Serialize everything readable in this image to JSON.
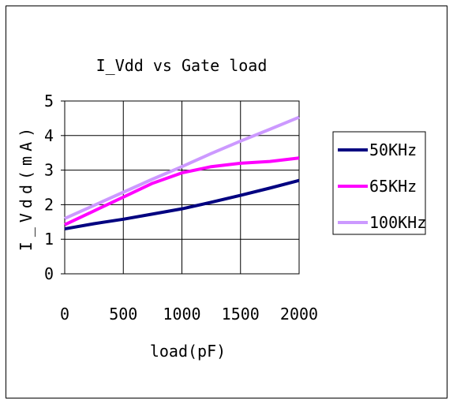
{
  "chart_data": {
    "type": "line",
    "title": "I_Vdd vs Gate load",
    "xlabel": "load(pF)",
    "ylabel": "I_Vdd(mA)",
    "x": [
      0,
      250,
      500,
      750,
      1000,
      1250,
      1500,
      1750,
      2000
    ],
    "xticks": [
      0,
      500,
      1000,
      1500,
      2000
    ],
    "yticks": [
      0,
      1,
      2,
      3,
      4,
      5
    ],
    "xlim": [
      0,
      2000
    ],
    "ylim": [
      0,
      5
    ],
    "grid": true,
    "legend_position": "right",
    "series": [
      {
        "name": "50KHz",
        "color": "#000080",
        "values": [
          1.3,
          1.45,
          1.58,
          1.73,
          1.88,
          2.07,
          2.27,
          2.48,
          2.7
        ]
      },
      {
        "name": "65KHz",
        "color": "#ff00ff",
        "values": [
          1.42,
          1.82,
          2.22,
          2.62,
          2.92,
          3.1,
          3.2,
          3.25,
          3.35
        ]
      },
      {
        "name": "100KHz",
        "color": "#cc99ff",
        "values": [
          1.6,
          1.98,
          2.36,
          2.74,
          3.1,
          3.48,
          3.84,
          4.18,
          4.53
        ]
      }
    ]
  }
}
